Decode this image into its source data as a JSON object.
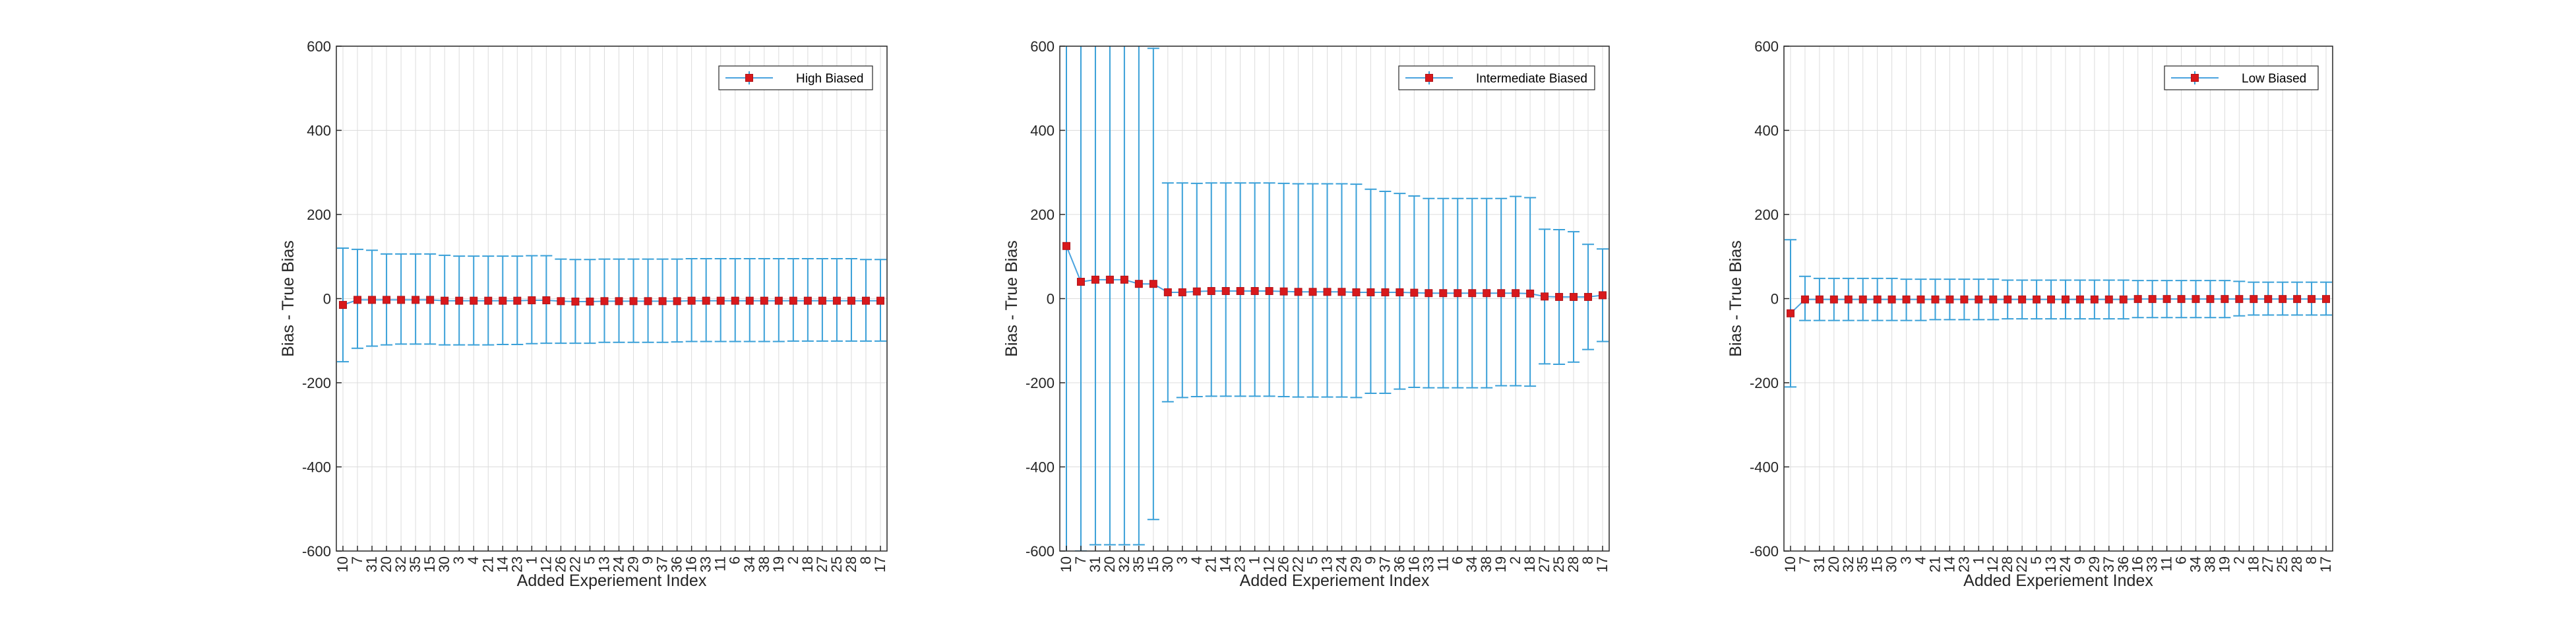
{
  "colors": {
    "errorbar": "#3aa0d8",
    "marker": "#d7191c",
    "line": "#4aa3df",
    "grid": "#dcdcdc",
    "axis": "#262626"
  },
  "chart_data": [
    {
      "type": "line",
      "xlabel": "Added Experiement Index",
      "ylabel": "Bias - True Bias",
      "ylim": [
        -600,
        600
      ],
      "yticks": [
        "600",
        "400",
        "200",
        "0",
        "-200",
        "-400",
        "-600"
      ],
      "grid": true,
      "legend_position": "top-right",
      "categories": [
        "10",
        "7",
        "31",
        "20",
        "32",
        "35",
        "15",
        "30",
        "3",
        "4",
        "21",
        "14",
        "23",
        "1",
        "12",
        "26",
        "22",
        "5",
        "13",
        "24",
        "29",
        "9",
        "37",
        "36",
        "16",
        "33",
        "11",
        "6",
        "34",
        "38",
        "19",
        "2",
        "18",
        "27",
        "25",
        "28",
        "8",
        "17"
      ],
      "series": [
        {
          "name": "High Biased",
          "values": [
            -15,
            -3,
            -3,
            -3,
            -3,
            -3,
            -3,
            -5,
            -5,
            -5,
            -5,
            -5,
            -5,
            -4,
            -4,
            -6,
            -7,
            -7,
            -6,
            -6,
            -6,
            -6,
            -6,
            -6,
            -5,
            -5,
            -5,
            -5,
            -5,
            -5,
            -5,
            -5,
            -5,
            -5,
            -5,
            -5,
            -5,
            -5
          ],
          "error_lower": [
            135,
            115,
            110,
            107,
            105,
            105,
            105,
            105,
            105,
            105,
            105,
            104,
            104,
            103,
            102,
            100,
            99,
            99,
            98,
            98,
            98,
            98,
            98,
            97,
            97,
            97,
            97,
            97,
            97,
            97,
            97,
            96,
            96,
            96,
            96,
            96,
            96,
            96
          ],
          "error_upper": [
            135,
            120,
            118,
            109,
            109,
            109,
            109,
            108,
            106,
            106,
            106,
            106,
            106,
            106,
            106,
            100,
            100,
            100,
            100,
            100,
            100,
            100,
            100,
            100,
            100,
            100,
            100,
            100,
            100,
            100,
            100,
            100,
            100,
            100,
            100,
            100,
            98,
            98
          ]
        }
      ]
    },
    {
      "type": "line",
      "xlabel": "Added Experiement Index",
      "ylabel": "Bias - True Bias",
      "ylim": [
        -600,
        600
      ],
      "yticks": [
        "600",
        "400",
        "200",
        "0",
        "-200",
        "-400",
        "-600"
      ],
      "grid": true,
      "legend_position": "top-right",
      "categories": [
        "10",
        "7",
        "31",
        "20",
        "32",
        "35",
        "15",
        "30",
        "3",
        "4",
        "21",
        "14",
        "23",
        "1",
        "12",
        "26",
        "22",
        "5",
        "13",
        "24",
        "29",
        "9",
        "37",
        "36",
        "16",
        "33",
        "11",
        "6",
        "34",
        "38",
        "19",
        "2",
        "18",
        "27",
        "25",
        "28",
        "8",
        "17"
      ],
      "series": [
        {
          "name": "Intermediate Biased",
          "values": [
            125,
            40,
            45,
            45,
            45,
            35,
            35,
            15,
            15,
            17,
            18,
            18,
            18,
            18,
            18,
            17,
            16,
            16,
            16,
            16,
            15,
            15,
            15,
            15,
            14,
            13,
            13,
            13,
            13,
            13,
            13,
            13,
            12,
            5,
            4,
            4,
            4,
            8
          ],
          "error_lower": [
            740,
            640,
            630,
            630,
            630,
            620,
            560,
            260,
            250,
            250,
            250,
            250,
            250,
            250,
            250,
            250,
            250,
            250,
            250,
            250,
            250,
            240,
            240,
            230,
            225,
            225,
            225,
            225,
            225,
            225,
            220,
            220,
            220,
            160,
            160,
            155,
            125,
            110
          ],
          "error_upper": [
            740,
            640,
            630,
            630,
            630,
            620,
            560,
            260,
            260,
            257,
            257,
            257,
            257,
            257,
            257,
            257,
            257,
            257,
            257,
            257,
            257,
            245,
            240,
            235,
            230,
            225,
            225,
            225,
            225,
            225,
            225,
            230,
            228,
            160,
            160,
            155,
            125,
            110
          ]
        }
      ]
    },
    {
      "type": "line",
      "xlabel": "Added Experiement Index",
      "ylabel": "Bias - True Bias",
      "ylim": [
        -600,
        600
      ],
      "yticks": [
        "600",
        "400",
        "200",
        "0",
        "-200",
        "-400",
        "-600"
      ],
      "grid": true,
      "legend_position": "top-right",
      "categories": [
        "10",
        "7",
        "31",
        "20",
        "32",
        "35",
        "15",
        "30",
        "3",
        "4",
        "21",
        "14",
        "23",
        "1",
        "12",
        "28",
        "22",
        "5",
        "13",
        "24",
        "9",
        "29",
        "37",
        "36",
        "16",
        "33",
        "11",
        "6",
        "34",
        "38",
        "19",
        "2",
        "18",
        "27",
        "25",
        "28",
        "8",
        "17"
      ],
      "series": [
        {
          "name": "Low Biased",
          "values": [
            -35,
            -2,
            -2,
            -2,
            -2,
            -2,
            -2,
            -2,
            -2,
            -2,
            -2,
            -2,
            -2,
            -2,
            -2,
            -2,
            -2,
            -2,
            -2,
            -2,
            -2,
            -2,
            -2,
            -2,
            -1,
            -1,
            -1,
            -1,
            -1,
            -1,
            -1,
            -1,
            -1,
            -1,
            -1,
            -1,
            -1,
            -1
          ],
          "error_lower": [
            175,
            50,
            50,
            50,
            50,
            50,
            50,
            50,
            50,
            50,
            48,
            48,
            48,
            48,
            48,
            46,
            46,
            46,
            46,
            46,
            46,
            46,
            46,
            46,
            44,
            44,
            44,
            44,
            44,
            44,
            44,
            40,
            38,
            38,
            38,
            38,
            38,
            38
          ],
          "error_upper": [
            175,
            55,
            50,
            50,
            50,
            50,
            50,
            50,
            48,
            48,
            48,
            48,
            48,
            48,
            48,
            46,
            46,
            46,
            46,
            46,
            46,
            46,
            46,
            46,
            44,
            44,
            44,
            44,
            44,
            44,
            44,
            42,
            40,
            40,
            40,
            40,
            40,
            40
          ]
        }
      ]
    }
  ]
}
